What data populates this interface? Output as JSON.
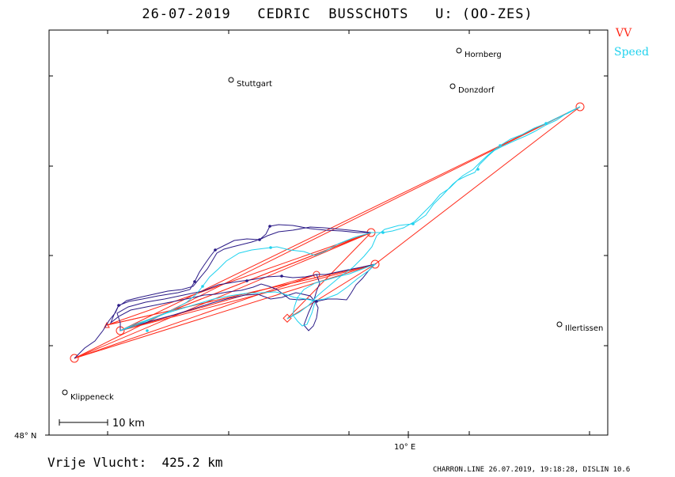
{
  "header": {
    "title": "26-07-2019   CEDRIC  BUSSCHOTS   U: (OO-ZES)"
  },
  "legend": {
    "vv_label": "VV",
    "speed_label": "Speed"
  },
  "colors": {
    "vv": "#ff2a1a",
    "speed": "#1fd2ee",
    "track": "#2a1a86",
    "frame": "#000000"
  },
  "places": [
    {
      "name": "Hornberg"
    },
    {
      "name": "Stuttgart"
    },
    {
      "name": "Donzdorf"
    },
    {
      "name": "Illertissen"
    },
    {
      "name": "Klippeneck"
    }
  ],
  "axes": {
    "x_tick_label": "10° E",
    "y_tick_label": "48° N"
  },
  "scale": {
    "label": "10  km"
  },
  "summary": {
    "distance_text": "Vrije Vlucht:  425.2 km"
  },
  "footer": {
    "text": "CHARRON.LINE 26.07.2019, 19:18:28, DISLIN 10.6"
  }
}
